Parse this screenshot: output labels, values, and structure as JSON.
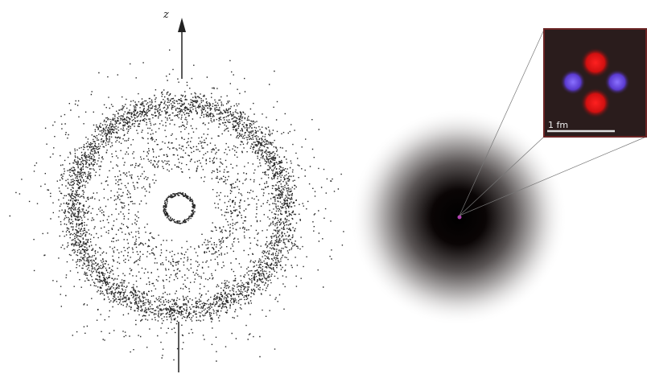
{
  "labels": {
    "axis": "z",
    "scale": "1 fm"
  }
}
